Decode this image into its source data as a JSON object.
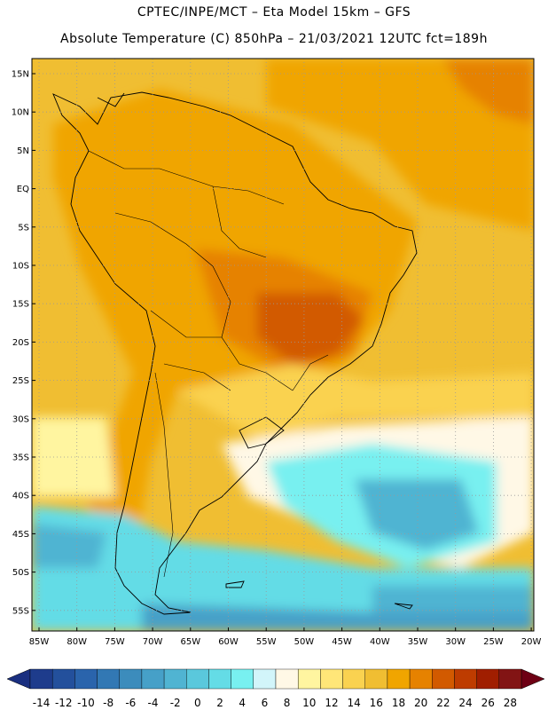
{
  "title": {
    "line1": "CPTEC/INPE/MCT –  Eta Model 15km – GFS",
    "line2": "Absolute Temperature (C) 850hPa – 21/03/2021 12UTC fct=189h"
  },
  "latitude_labels": [
    "15N",
    "10N",
    "5N",
    "EQ",
    "5S",
    "10S",
    "15S",
    "20S",
    "25S",
    "30S",
    "35S",
    "40S",
    "45S",
    "50S",
    "55S"
  ],
  "longitude_labels": [
    "85W",
    "80W",
    "75W",
    "70W",
    "65W",
    "60W",
    "55W",
    "50W",
    "45W",
    "40W",
    "35W",
    "30W",
    "25W",
    "20W"
  ],
  "colorbar": {
    "labels": [
      "-14",
      "-12",
      "-10",
      "-8",
      "-6",
      "-4",
      "-2",
      "0",
      "2",
      "4",
      "6",
      "8",
      "10",
      "12",
      "14",
      "16",
      "18",
      "20",
      "22",
      "24",
      "26",
      "28"
    ],
    "colors": [
      "#1e3c8c",
      "#23509c",
      "#2a64ac",
      "#3278b4",
      "#3c8cbc",
      "#46a0c8",
      "#50b4d2",
      "#5ac8dc",
      "#64dce6",
      "#78f0f0",
      "#d2f5fa",
      "#fff8e6",
      "#fff5a0",
      "#ffe678",
      "#fad250",
      "#f0be32",
      "#f0a500",
      "#e68200",
      "#d25a00",
      "#be3c00",
      "#a01e00",
      "#821414"
    ],
    "low_arrow_color": "#1a2f80",
    "high_arrow_color": "#6e0014"
  },
  "colors": {
    "ocean_warm": "#f0a500",
    "land_warm": "#e68200",
    "hot_core": "#d25a00",
    "cold_water": "#46a0c8",
    "very_cold": "#3278b4"
  }
}
